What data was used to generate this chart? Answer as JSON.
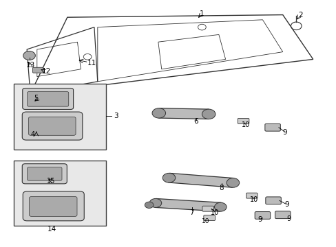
{
  "background_color": "#ffffff",
  "line_color": "#333333",
  "label_color": "#000000",
  "box_fill": "#e8e8e8",
  "fig_width": 4.89,
  "fig_height": 3.6,
  "dpi": 100
}
